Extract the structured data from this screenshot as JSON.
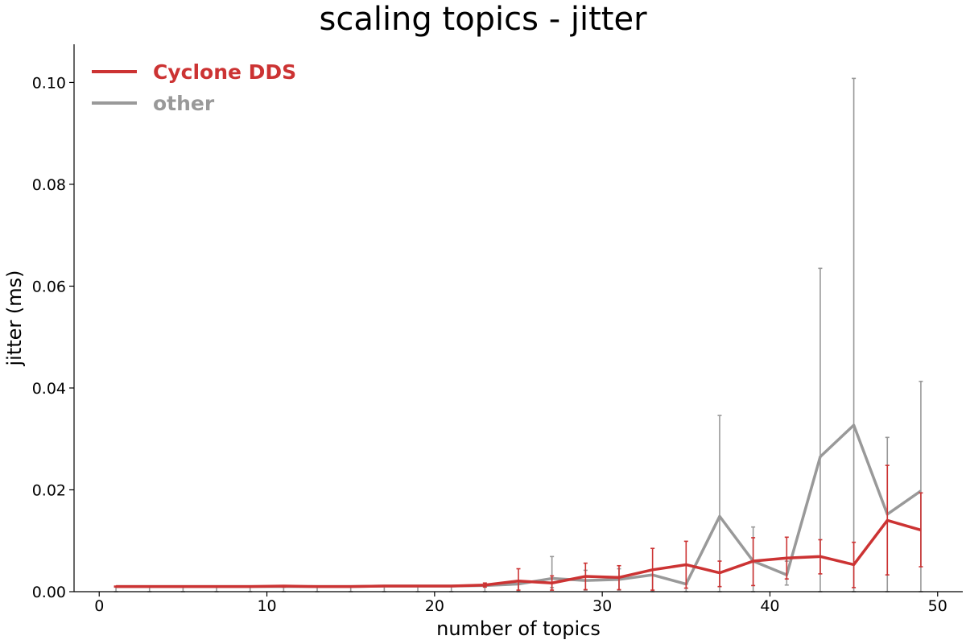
{
  "chart_data": {
    "type": "line",
    "title": "scaling topics - jitter",
    "xlabel": "number of topics",
    "ylabel": "jitter (ms)",
    "xlim": [
      -1.5,
      51.5
    ],
    "ylim": [
      0,
      0.1075
    ],
    "xticks": [
      0,
      10,
      20,
      30,
      40,
      50
    ],
    "yticks": [
      0.0,
      0.02,
      0.04,
      0.06,
      0.08,
      0.1
    ],
    "ytick_labels": [
      "0.00",
      "0.02",
      "0.04",
      "0.06",
      "0.08",
      "0.10"
    ],
    "grid": false,
    "legend_position": "top-left",
    "series": [
      {
        "name": "other",
        "color": "#999999",
        "x": [
          1,
          3,
          5,
          7,
          9,
          11,
          13,
          15,
          17,
          19,
          21,
          23,
          25,
          27,
          29,
          31,
          33,
          35,
          37,
          39,
          41,
          43,
          45,
          47,
          49
        ],
        "y": [
          0.001,
          0.001,
          0.001,
          0.001,
          0.001,
          0.001,
          0.001,
          0.001,
          0.0011,
          0.0011,
          0.0011,
          0.0012,
          0.0015,
          0.0026,
          0.0022,
          0.0024,
          0.0033,
          0.0015,
          0.0148,
          0.006,
          0.0033,
          0.0265,
          0.0327,
          0.0152,
          0.0198
        ],
        "err_low": [
          0,
          0,
          0,
          0,
          0,
          0,
          0,
          0,
          0,
          0,
          0,
          0,
          0,
          0.0008,
          0.0003,
          0.0003,
          0,
          0,
          0,
          0,
          0.0013,
          0,
          0,
          0,
          0
        ],
        "err_high": [
          0.001,
          0.001,
          0.001,
          0.001,
          0.001,
          0.001,
          0.001,
          0.001,
          0.0011,
          0.0011,
          0.0011,
          0.0012,
          0.0015,
          0.0069,
          0.0042,
          0.0045,
          0.0033,
          0.0015,
          0.0346,
          0.0127,
          0.006,
          0.0635,
          0.1008,
          0.0303,
          0.0413
        ]
      },
      {
        "name": "Cyclone DDS",
        "color": "#cc3333",
        "x": [
          1,
          3,
          5,
          7,
          9,
          11,
          13,
          15,
          17,
          19,
          21,
          23,
          25,
          27,
          29,
          31,
          33,
          35,
          37,
          39,
          41,
          43,
          45,
          47,
          49
        ],
        "y": [
          0.001,
          0.001,
          0.001,
          0.001,
          0.001,
          0.0011,
          0.001,
          0.001,
          0.0011,
          0.0011,
          0.0011,
          0.0013,
          0.0021,
          0.0017,
          0.003,
          0.0028,
          0.0043,
          0.0053,
          0.0037,
          0.006,
          0.0066,
          0.0069,
          0.0053,
          0.014,
          0.0121
        ],
        "err_low": [
          0.0009,
          0.0009,
          0.0009,
          0.0009,
          0.0009,
          0.0009,
          0.0009,
          0.0009,
          0.001,
          0.001,
          0.001,
          0.0009,
          0.0003,
          0.0003,
          0.0004,
          0.0004,
          0.0003,
          0.0007,
          0.001,
          0.0012,
          0.0025,
          0.0035,
          0.0008,
          0.0033,
          0.0049
        ],
        "err_high": [
          0.0011,
          0.0011,
          0.0011,
          0.0011,
          0.0011,
          0.0012,
          0.0011,
          0.0011,
          0.0012,
          0.0012,
          0.0012,
          0.0017,
          0.0045,
          0.0031,
          0.0056,
          0.0051,
          0.0085,
          0.0099,
          0.006,
          0.0106,
          0.0107,
          0.0102,
          0.0097,
          0.0248,
          0.0194
        ]
      }
    ]
  }
}
